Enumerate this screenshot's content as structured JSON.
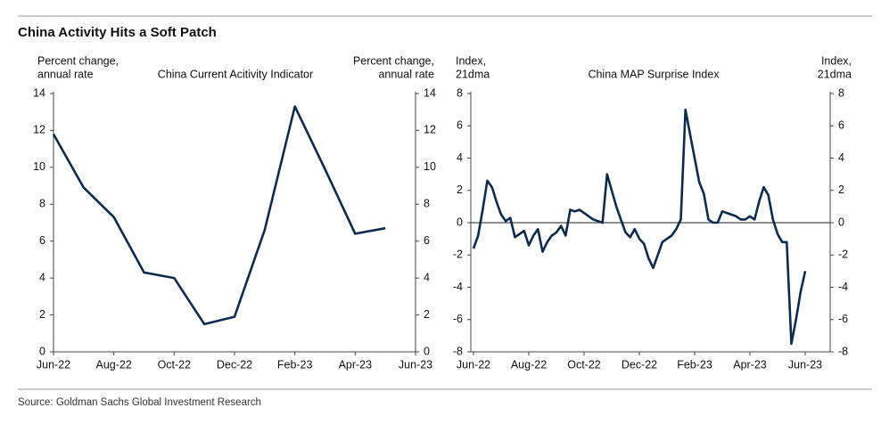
{
  "title": "China Activity Hits a Soft Patch",
  "source": "Source: Goldman Sachs Global Investment Research",
  "chart_data": [
    {
      "type": "line",
      "title": "China Current Acitivity Indicator",
      "y_label": [
        "Percent change,",
        "annual rate"
      ],
      "y2_label": [
        "Percent change,",
        "annual rate"
      ],
      "categories": [
        "Jun-22",
        null,
        "Aug-22",
        null,
        "Oct-22",
        null,
        "Dec-22",
        null,
        "Feb-23",
        null,
        "Apr-23",
        null,
        "Jun-23"
      ],
      "values": [
        11.8,
        8.9,
        7.3,
        4.3,
        4.0,
        1.5,
        1.9,
        6.6,
        13.3,
        9.9,
        6.4,
        6.7,
        null
      ],
      "color": "#0f2a4a",
      "ylim": [
        0,
        14
      ],
      "yticks": [
        0,
        2,
        4,
        6,
        8,
        10,
        12,
        14
      ],
      "y2lim": [
        0,
        14
      ],
      "y2ticks": [
        0,
        2,
        4,
        6,
        8,
        10,
        12,
        14
      ]
    },
    {
      "type": "line",
      "title": "China MAP Surprise Index",
      "y_label": [
        "Index,",
        "21dma"
      ],
      "y2_label": [
        "Index,",
        "21dma"
      ],
      "categories": [
        "Jun-22",
        null,
        null,
        null,
        null,
        null,
        null,
        null,
        null,
        null,
        null,
        null,
        "Aug-22",
        null,
        null,
        null,
        null,
        null,
        null,
        null,
        null,
        null,
        null,
        null,
        "Oct-22",
        null,
        null,
        null,
        null,
        null,
        null,
        null,
        null,
        null,
        null,
        null,
        "Dec-22",
        null,
        null,
        null,
        null,
        null,
        null,
        null,
        null,
        null,
        null,
        null,
        "Feb-23",
        null,
        null,
        null,
        null,
        null,
        null,
        null,
        null,
        null,
        null,
        null,
        "Apr-23",
        null,
        null,
        null,
        null,
        null,
        null,
        null,
        null,
        null,
        null,
        null,
        "Jun-23"
      ],
      "values": [
        -1.6,
        -0.8,
        0.8,
        2.6,
        2.2,
        1.3,
        0.5,
        0.1,
        0.3,
        -0.9,
        -0.7,
        -0.5,
        -1.4,
        -0.8,
        -0.4,
        -1.8,
        -1.2,
        -0.8,
        -0.6,
        -0.2,
        -0.8,
        0.8,
        0.7,
        0.8,
        0.6,
        0.4,
        0.2,
        0.1,
        0.0,
        3.0,
        2.0,
        1.0,
        0.2,
        -0.6,
        -0.9,
        -0.4,
        -1.0,
        -1.3,
        -2.2,
        -2.8,
        -2.0,
        -1.2,
        -1.0,
        -0.8,
        -0.4,
        0.2,
        7.0,
        5.5,
        4.0,
        2.5,
        1.8,
        0.2,
        0.0,
        0.0,
        0.7,
        0.6,
        0.5,
        0.4,
        0.2,
        0.2,
        0.4,
        0.2,
        1.3,
        2.2,
        1.7,
        0.2,
        -0.7,
        -1.2,
        -1.2,
        -7.5,
        -6.0,
        -4.3,
        -3.0
      ],
      "color": "#0f2a4a",
      "zero_line": true,
      "ylim": [
        -8,
        8
      ],
      "yticks": [
        -8,
        -6,
        -4,
        -2,
        0,
        2,
        4,
        6,
        8
      ],
      "y2lim": [
        -8,
        8
      ],
      "y2ticks": [
        -8,
        -6,
        -4,
        -2,
        0,
        2,
        4,
        6,
        8
      ]
    }
  ]
}
